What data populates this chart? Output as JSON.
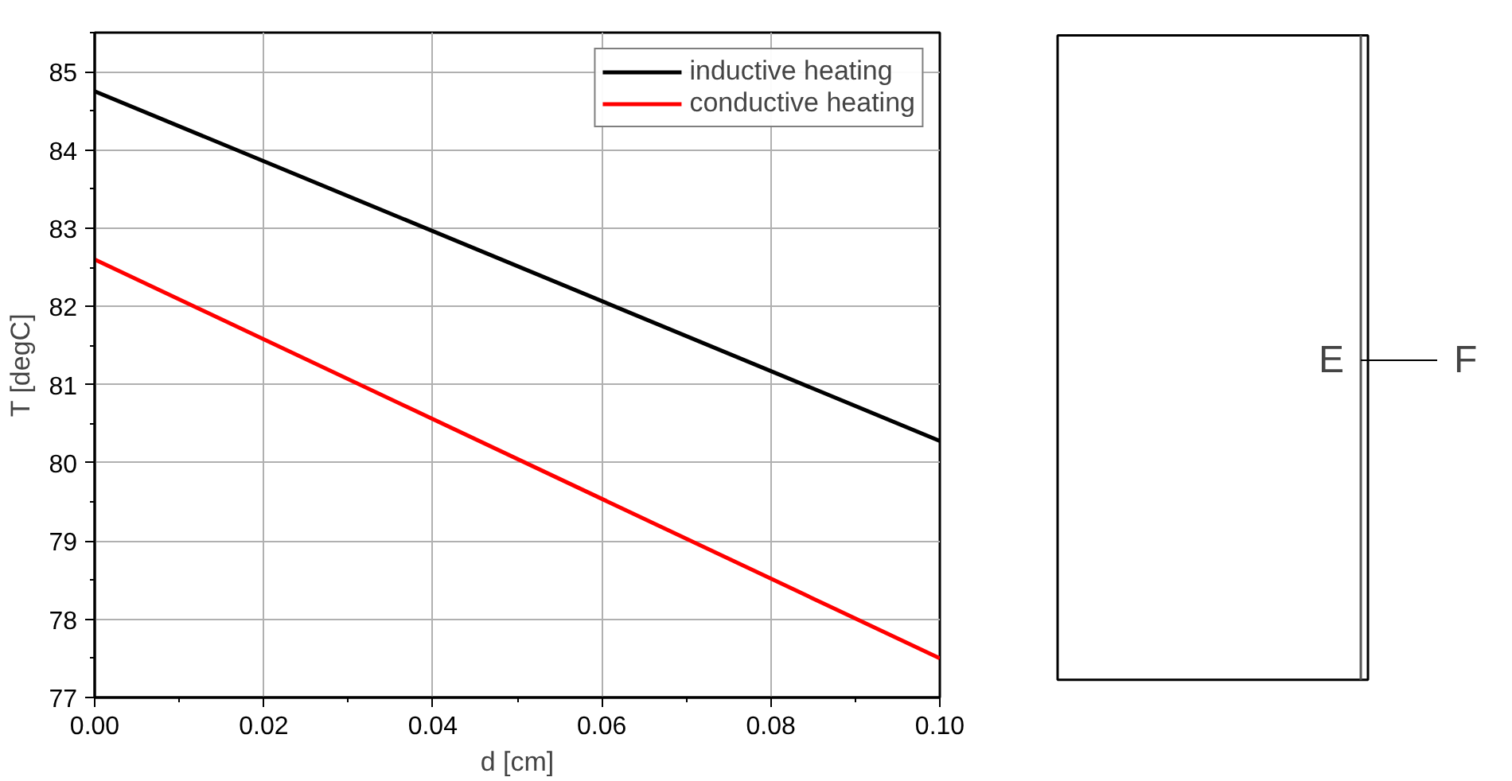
{
  "chart_data": [
    {
      "type": "line",
      "xlabel": "d [cm]",
      "ylabel": "T [degC]",
      "x": [
        0,
        0.1
      ],
      "xlim": [
        0,
        0.1
      ],
      "ylim": [
        77,
        85.5
      ],
      "xticks": [
        {
          "value": 0,
          "label": "0.00"
        },
        {
          "value": 0.02,
          "label": "0.02"
        },
        {
          "value": 0.04,
          "label": "0.04"
        },
        {
          "value": 0.06,
          "label": "0.06"
        },
        {
          "value": 0.08,
          "label": "0.08"
        },
        {
          "value": 0.1,
          "label": "0.10"
        }
      ],
      "yticks": [
        77,
        78,
        79,
        80,
        81,
        82,
        83,
        84,
        85
      ],
      "grid": true,
      "legend": "top right",
      "line_style": "solid",
      "series": [
        {
          "name": "inductive heating",
          "color": "#000000",
          "values": [
            84.75,
            80.28
          ]
        },
        {
          "name": "conductive heating",
          "color": "#ff0000",
          "values": [
            82.6,
            77.5
          ]
        }
      ]
    },
    {
      "type": "other",
      "annotations": [
        "E",
        "F"
      ]
    }
  ]
}
